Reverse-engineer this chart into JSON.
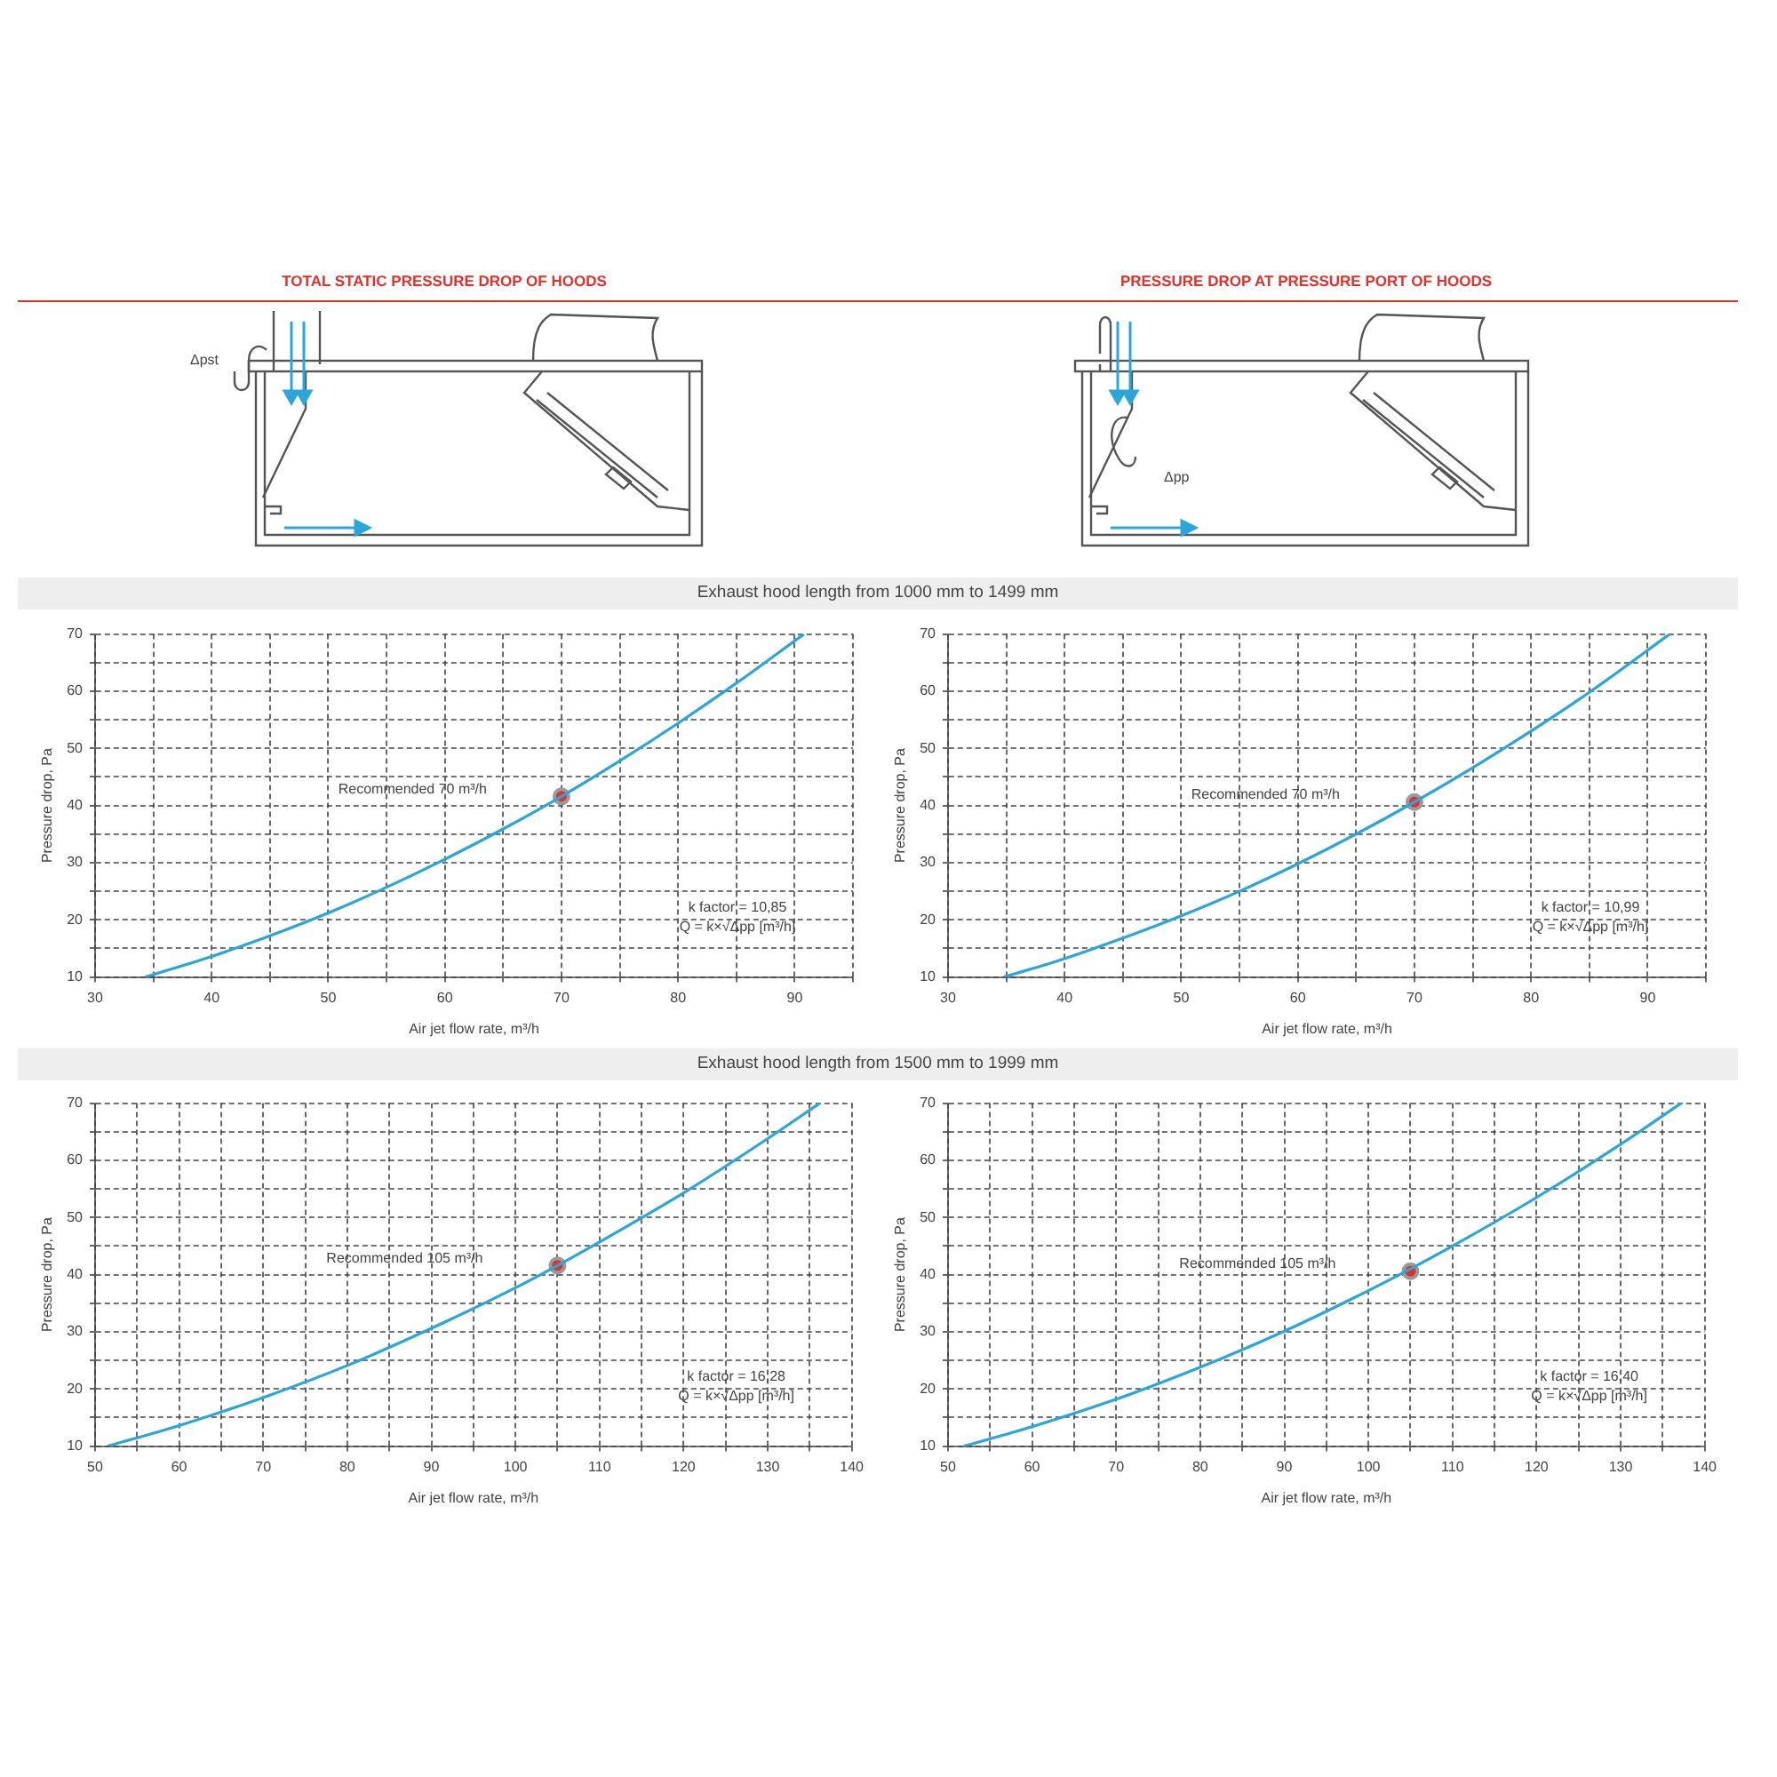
{
  "chart_data": [
    {
      "type": "line",
      "title": "TOTAL STATIC PRESSURE DROP OF HOODS",
      "subtitle": "Exhaust hood length from 1000 mm to 1499 mm",
      "xlabel": "Air jet flow rate, m³/h",
      "ylabel": "Pressure drop, Pa",
      "xlim": [
        30,
        95
      ],
      "ylim": [
        10,
        70
      ],
      "xticks": [
        30,
        {
          "value": 35,
          "label": null
        },
        40,
        {
          "value": 45,
          "label": null
        },
        50,
        {
          "value": 55,
          "label": null
        },
        60,
        {
          "value": 65,
          "label": null
        },
        70,
        {
          "value": 75,
          "label": null
        },
        80,
        {
          "value": 85,
          "label": null
        },
        90,
        {
          "value": 95,
          "label": null
        }
      ],
      "yticks": [
        10,
        {
          "value": 15,
          "label": null
        },
        20,
        {
          "value": 25,
          "label": null
        },
        30,
        {
          "value": 35,
          "label": null
        },
        40,
        {
          "value": 45,
          "label": null
        },
        50,
        {
          "value": 55,
          "label": null
        },
        60,
        {
          "value": 65,
          "label": null
        },
        70
      ],
      "grid": true,
      "series": [
        {
          "color": "#2aa7d8",
          "x": [
            34.3,
            40,
            45,
            50,
            55,
            60,
            65,
            70,
            75,
            80,
            85,
            90.8
          ],
          "values": [
            10,
            13.6,
            17.2,
            21.2,
            25.7,
            30.6,
            35.9,
            41.6,
            47.8,
            54.4,
            61.4,
            70
          ]
        },
        {
          "type": "scatter",
          "color": "#e0312b",
          "x": [
            70
          ],
          "values": [
            41.6
          ]
        }
      ],
      "annotations": [
        "Recommended 70 m³/h",
        "k factor = 10,85",
        "Q = k×√Δpp [m³/h]",
        "Δpst"
      ]
    },
    {
      "type": "line",
      "title": "PRESSURE DROP AT PRESSURE PORT OF HOODS",
      "xlabel": "Air jet flow rate, m³/h",
      "ylabel": "Pressure drop, Pa",
      "xlim": [
        30,
        95
      ],
      "ylim": [
        10,
        70
      ],
      "xticks": [
        30,
        {
          "value": 35,
          "label": null
        },
        40,
        {
          "value": 45,
          "label": null
        },
        50,
        {
          "value": 55,
          "label": null
        },
        60,
        {
          "value": 65,
          "label": null
        },
        70,
        {
          "value": 75,
          "label": null
        },
        80,
        {
          "value": 85,
          "label": null
        },
        90,
        {
          "value": 95,
          "label": null
        }
      ],
      "yticks": [
        10,
        {
          "value": 15,
          "label": null
        },
        20,
        {
          "value": 25,
          "label": null
        },
        30,
        {
          "value": 35,
          "label": null
        },
        40,
        {
          "value": 45,
          "label": null
        },
        50,
        {
          "value": 55,
          "label": null
        },
        60,
        {
          "value": 65,
          "label": null
        },
        70
      ],
      "grid": true,
      "series": [
        {
          "color": "#2aa7d8",
          "x": [
            34.8,
            40,
            45,
            50,
            55,
            60,
            65,
            70,
            75,
            80,
            85,
            91.9
          ],
          "values": [
            10,
            13.2,
            16.8,
            20.7,
            25,
            29.8,
            35,
            40.6,
            46.6,
            53,
            59.8,
            70
          ]
        },
        {
          "type": "scatter",
          "color": "#e0312b",
          "x": [
            70
          ],
          "values": [
            40.6
          ]
        }
      ],
      "annotations": [
        "Recommended 70 m³/h",
        "k factor = 10,99",
        "Q = k×√Δpp [m³/h]",
        "Δpp"
      ]
    },
    {
      "type": "line",
      "subtitle": "Exhaust hood length from 1500 mm to 1999 mm",
      "xlabel": "Air jet flow rate, m³/h",
      "ylabel": "Pressure drop, Pa",
      "xlim": [
        50,
        140
      ],
      "ylim": [
        10,
        70
      ],
      "xticks": [
        50,
        {
          "value": 55,
          "label": null
        },
        60,
        {
          "value": 65,
          "label": null
        },
        70,
        {
          "value": 75,
          "label": null
        },
        80,
        {
          "value": 85,
          "label": null
        },
        90,
        {
          "value": 95,
          "label": null
        },
        100,
        {
          "value": 105,
          "label": null
        },
        110,
        {
          "value": 115,
          "label": null
        },
        120,
        {
          "value": 125,
          "label": null
        },
        130,
        {
          "value": 135,
          "label": null
        },
        140
      ],
      "yticks": [
        10,
        {
          "value": 15,
          "label": null
        },
        20,
        {
          "value": 25,
          "label": null
        },
        30,
        {
          "value": 35,
          "label": null
        },
        40,
        {
          "value": 45,
          "label": null
        },
        50,
        {
          "value": 55,
          "label": null
        },
        60,
        {
          "value": 65,
          "label": null
        },
        70
      ],
      "grid": true,
      "series": [
        {
          "color": "#2aa7d8",
          "x": [
            51.5,
            60,
            70,
            80,
            90,
            100,
            105,
            110,
            120,
            130,
            136.2
          ],
          "values": [
            10,
            13.6,
            18.5,
            24.1,
            30.6,
            37.7,
            41.6,
            45.7,
            54.3,
            63.8,
            70
          ]
        },
        {
          "type": "scatter",
          "color": "#e0312b",
          "x": [
            105
          ],
          "values": [
            41.6
          ]
        }
      ],
      "annotations": [
        "Recommended 105 m³/h",
        "k factor = 16,28",
        "Q = k×√Δpp [m³/h]"
      ]
    },
    {
      "type": "line",
      "xlabel": "Air jet flow rate, m³/h",
      "ylabel": "Pressure drop, Pa",
      "xlim": [
        50,
        140
      ],
      "ylim": [
        10,
        70
      ],
      "xticks": [
        50,
        {
          "value": 55,
          "label": null
        },
        60,
        {
          "value": 65,
          "label": null
        },
        70,
        {
          "value": 75,
          "label": null
        },
        80,
        {
          "value": 85,
          "label": null
        },
        90,
        {
          "value": 95,
          "label": null
        },
        100,
        {
          "value": 105,
          "label": null
        },
        110,
        {
          "value": 115,
          "label": null
        },
        120,
        {
          "value": 125,
          "label": null
        },
        130,
        {
          "value": 135,
          "label": null
        },
        140
      ],
      "yticks": [
        10,
        {
          "value": 15,
          "label": null
        },
        20,
        {
          "value": 25,
          "label": null
        },
        30,
        {
          "value": 35,
          "label": null
        },
        40,
        {
          "value": 45,
          "label": null
        },
        50,
        {
          "value": 55,
          "label": null
        },
        60,
        {
          "value": 65,
          "label": null
        },
        70
      ],
      "grid": true,
      "series": [
        {
          "color": "#2aa7d8",
          "x": [
            51.9,
            60,
            70,
            80,
            90,
            100,
            105,
            110,
            120,
            130,
            137.2
          ],
          "values": [
            10,
            13.4,
            18.2,
            23.8,
            30.1,
            37.2,
            41,
            45,
            53.5,
            62.8,
            70
          ]
        },
        {
          "type": "scatter",
          "color": "#e0312b",
          "x": [
            105
          ],
          "values": [
            40.6
          ]
        }
      ],
      "annotations": [
        "Recommended 105 m³/h",
        "k factor = 16,40",
        "Q = k×√Δpp [m³/h]"
      ]
    }
  ]
}
